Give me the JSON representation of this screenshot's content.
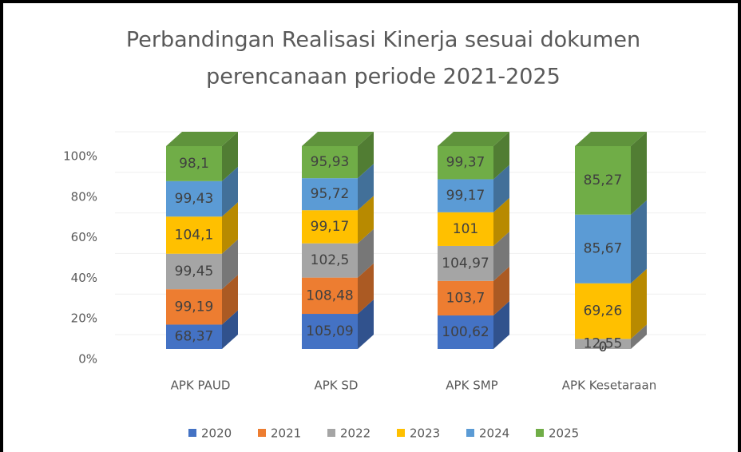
{
  "chart_data": {
    "type": "bar",
    "stacked": "percent",
    "title": [
      "Perbandingan Realisasi Kinerja sesuai dokumen",
      "perencanaan periode 2021-2025"
    ],
    "categories": [
      "APK PAUD",
      "APK SD",
      "APK SMP",
      "APK Kesetaraan"
    ],
    "series": [
      {
        "name": "2020",
        "color": "#4472c4",
        "values": [
          68.37,
          105.09,
          100.62,
          0
        ],
        "value_labels": [
          "68,37",
          "105,09",
          "100,62",
          "0"
        ]
      },
      {
        "name": "2021",
        "color": "#ed7d31",
        "values": [
          99.19,
          108.48,
          103.7,
          0
        ],
        "value_labels": [
          "99,19",
          "108,48",
          "103,7",
          "0"
        ]
      },
      {
        "name": "2022",
        "color": "#a5a5a5",
        "values": [
          99.45,
          102.5,
          104.97,
          12.55
        ],
        "value_labels": [
          "99,45",
          "102,5",
          "104,97",
          "12,55"
        ]
      },
      {
        "name": "2023",
        "color": "#ffc000",
        "values": [
          104.1,
          99.17,
          101,
          69.26
        ],
        "value_labels": [
          "104,1",
          "99,17",
          "101",
          "69,26"
        ]
      },
      {
        "name": "2024",
        "color": "#5b9bd5",
        "values": [
          99.43,
          95.72,
          99.17,
          85.67
        ],
        "value_labels": [
          "99,43",
          "95,72",
          "99,17",
          "85,67"
        ]
      },
      {
        "name": "2025",
        "color": "#70ad47",
        "values": [
          98.1,
          95.93,
          99.37,
          85.27
        ],
        "value_labels": [
          "98,1",
          "95,93",
          "99,37",
          "85,27"
        ]
      }
    ],
    "ylim": [
      0,
      100
    ],
    "yticks": [
      {
        "value": 0,
        "label": "0%"
      },
      {
        "value": 20,
        "label": "20%"
      },
      {
        "value": 40,
        "label": "40%"
      },
      {
        "value": 60,
        "label": "60%"
      },
      {
        "value": 80,
        "label": "80%"
      },
      {
        "value": 100,
        "label": "100%"
      }
    ],
    "grid": true,
    "legend": "bottom"
  }
}
